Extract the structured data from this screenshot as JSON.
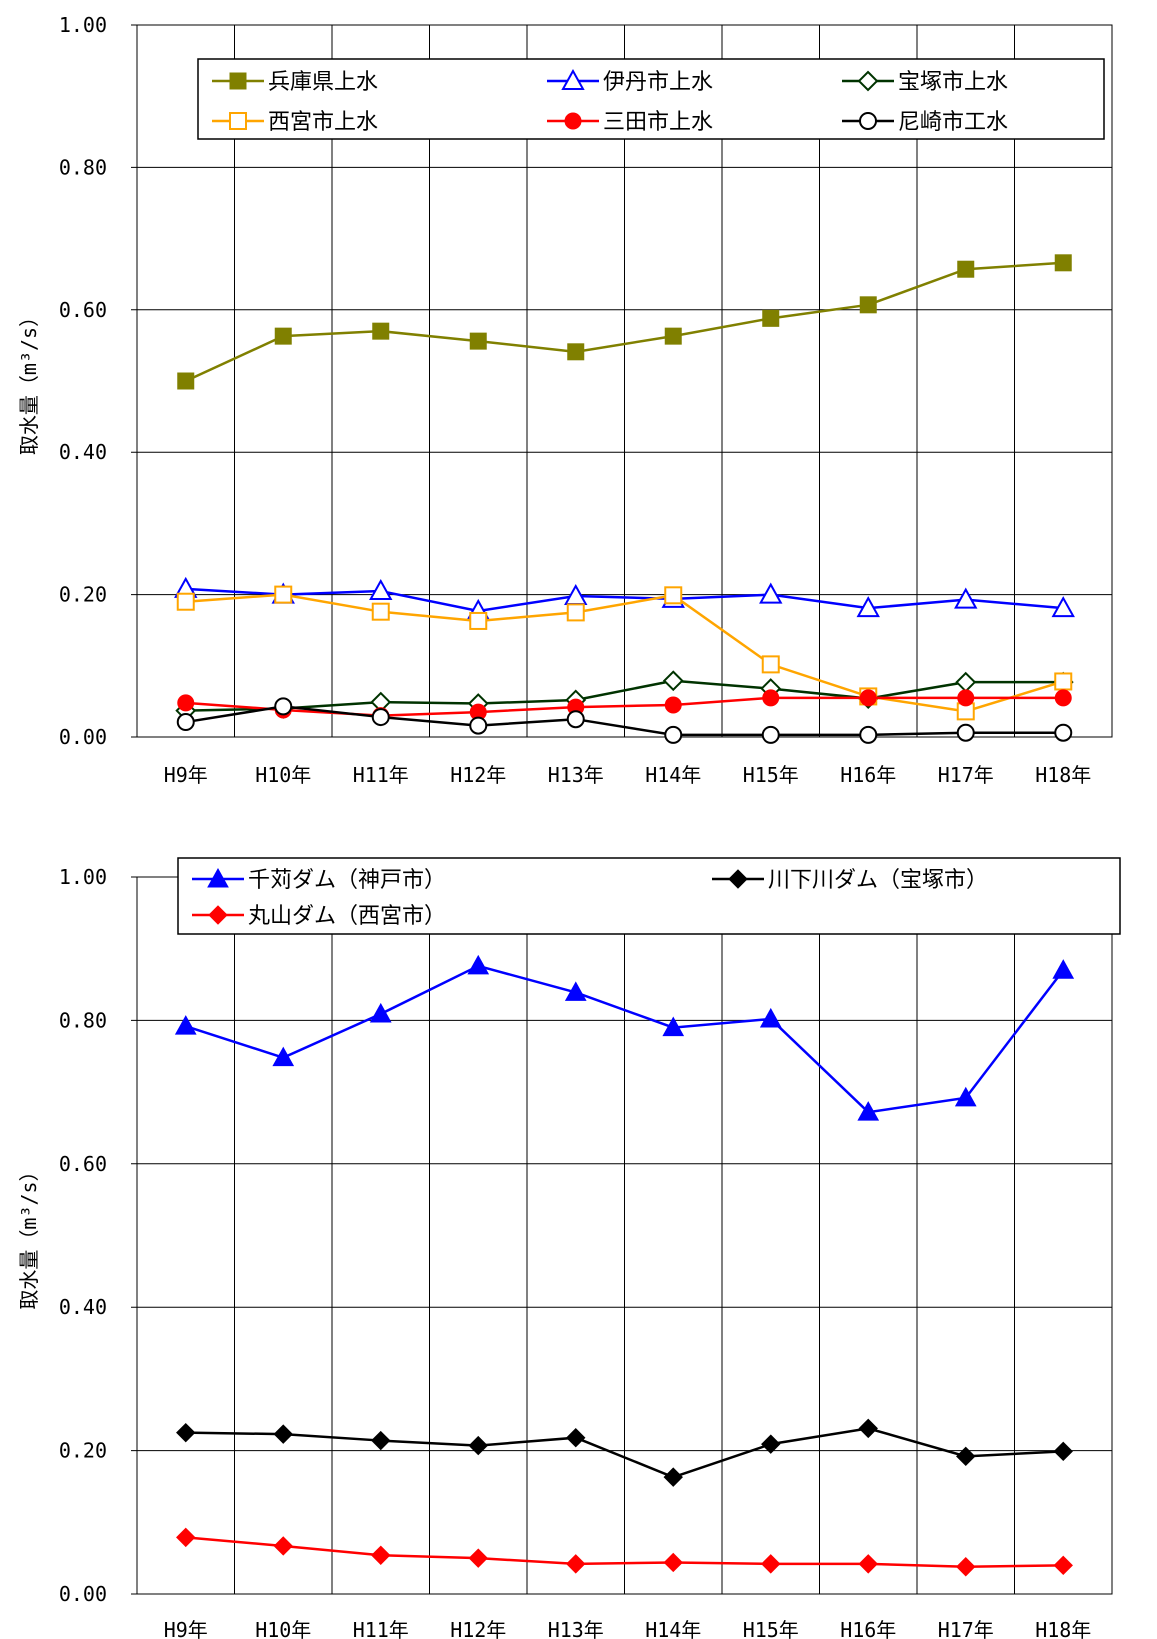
{
  "chart_data": [
    {
      "type": "line",
      "categories": [
        "H9年",
        "H10年",
        "H11年",
        "H12年",
        "H13年",
        "H14年",
        "H15年",
        "H16年",
        "H17年",
        "H18年"
      ],
      "ylabel": "取水量（m³/s）",
      "ylim": [
        0,
        1.0
      ],
      "yticks": [
        "0.00",
        "0.20",
        "0.40",
        "0.60",
        "0.80",
        "1.00"
      ],
      "grid": true,
      "legend_position": "top",
      "series": [
        {
          "name": "兵庫県上水",
          "color": "#808000",
          "marker": "square-filled",
          "values": [
            0.5,
            0.563,
            0.57,
            0.556,
            0.541,
            0.563,
            0.588,
            0.607,
            0.657,
            0.666
          ]
        },
        {
          "name": "伊丹市上水",
          "color": "#0000ff",
          "marker": "triangle-open",
          "values": [
            0.208,
            0.2,
            0.205,
            0.177,
            0.198,
            0.194,
            0.2,
            0.181,
            0.193,
            0.181
          ]
        },
        {
          "name": "宝塚市上水",
          "color": "#003300",
          "marker": "diamond-open",
          "values": [
            0.037,
            0.04,
            0.049,
            0.047,
            0.052,
            0.079,
            0.068,
            0.054,
            0.077,
            0.077
          ]
        },
        {
          "name": "西宮市上水",
          "color": "#ffa500",
          "marker": "square-open",
          "values": [
            0.19,
            0.2,
            0.176,
            0.163,
            0.175,
            0.199,
            0.102,
            0.057,
            0.036,
            0.078
          ]
        },
        {
          "name": "三田市上水",
          "color": "#ff0000",
          "marker": "circle-filled",
          "values": [
            0.048,
            0.038,
            0.03,
            0.035,
            0.042,
            0.045,
            0.055,
            0.055,
            0.055,
            0.055
          ]
        },
        {
          "name": "尼崎市工水",
          "color": "#000000",
          "marker": "circle-open",
          "values": [
            0.021,
            0.043,
            0.028,
            0.016,
            0.025,
            0.003,
            0.003,
            0.003,
            0.006,
            0.006
          ]
        }
      ]
    },
    {
      "type": "line",
      "categories": [
        "H9年",
        "H10年",
        "H11年",
        "H12年",
        "H13年",
        "H14年",
        "H15年",
        "H16年",
        "H17年",
        "H18年"
      ],
      "ylabel": "取水量（m³/s）",
      "ylim": [
        0,
        1.0
      ],
      "yticks": [
        "0.00",
        "0.20",
        "0.40",
        "0.60",
        "0.80",
        "1.00"
      ],
      "grid": true,
      "legend_position": "top",
      "series": [
        {
          "name": "千苅ダム（神戸市）",
          "color": "#0000ff",
          "marker": "triangle-filled",
          "values": [
            0.792,
            0.748,
            0.809,
            0.876,
            0.839,
            0.79,
            0.802,
            0.672,
            0.692,
            0.87
          ]
        },
        {
          "name": "川下川ダム（宝塚市）",
          "color": "#000000",
          "marker": "diamond-filled",
          "values": [
            0.225,
            0.223,
            0.214,
            0.207,
            0.218,
            0.163,
            0.209,
            0.231,
            0.192,
            0.199
          ]
        },
        {
          "name": "丸山ダム（西宮市）",
          "color": "#ff0000",
          "marker": "diamond-filled",
          "values": [
            0.079,
            0.067,
            0.054,
            0.05,
            0.042,
            0.044,
            0.042,
            0.042,
            0.038,
            0.04
          ]
        }
      ]
    }
  ]
}
